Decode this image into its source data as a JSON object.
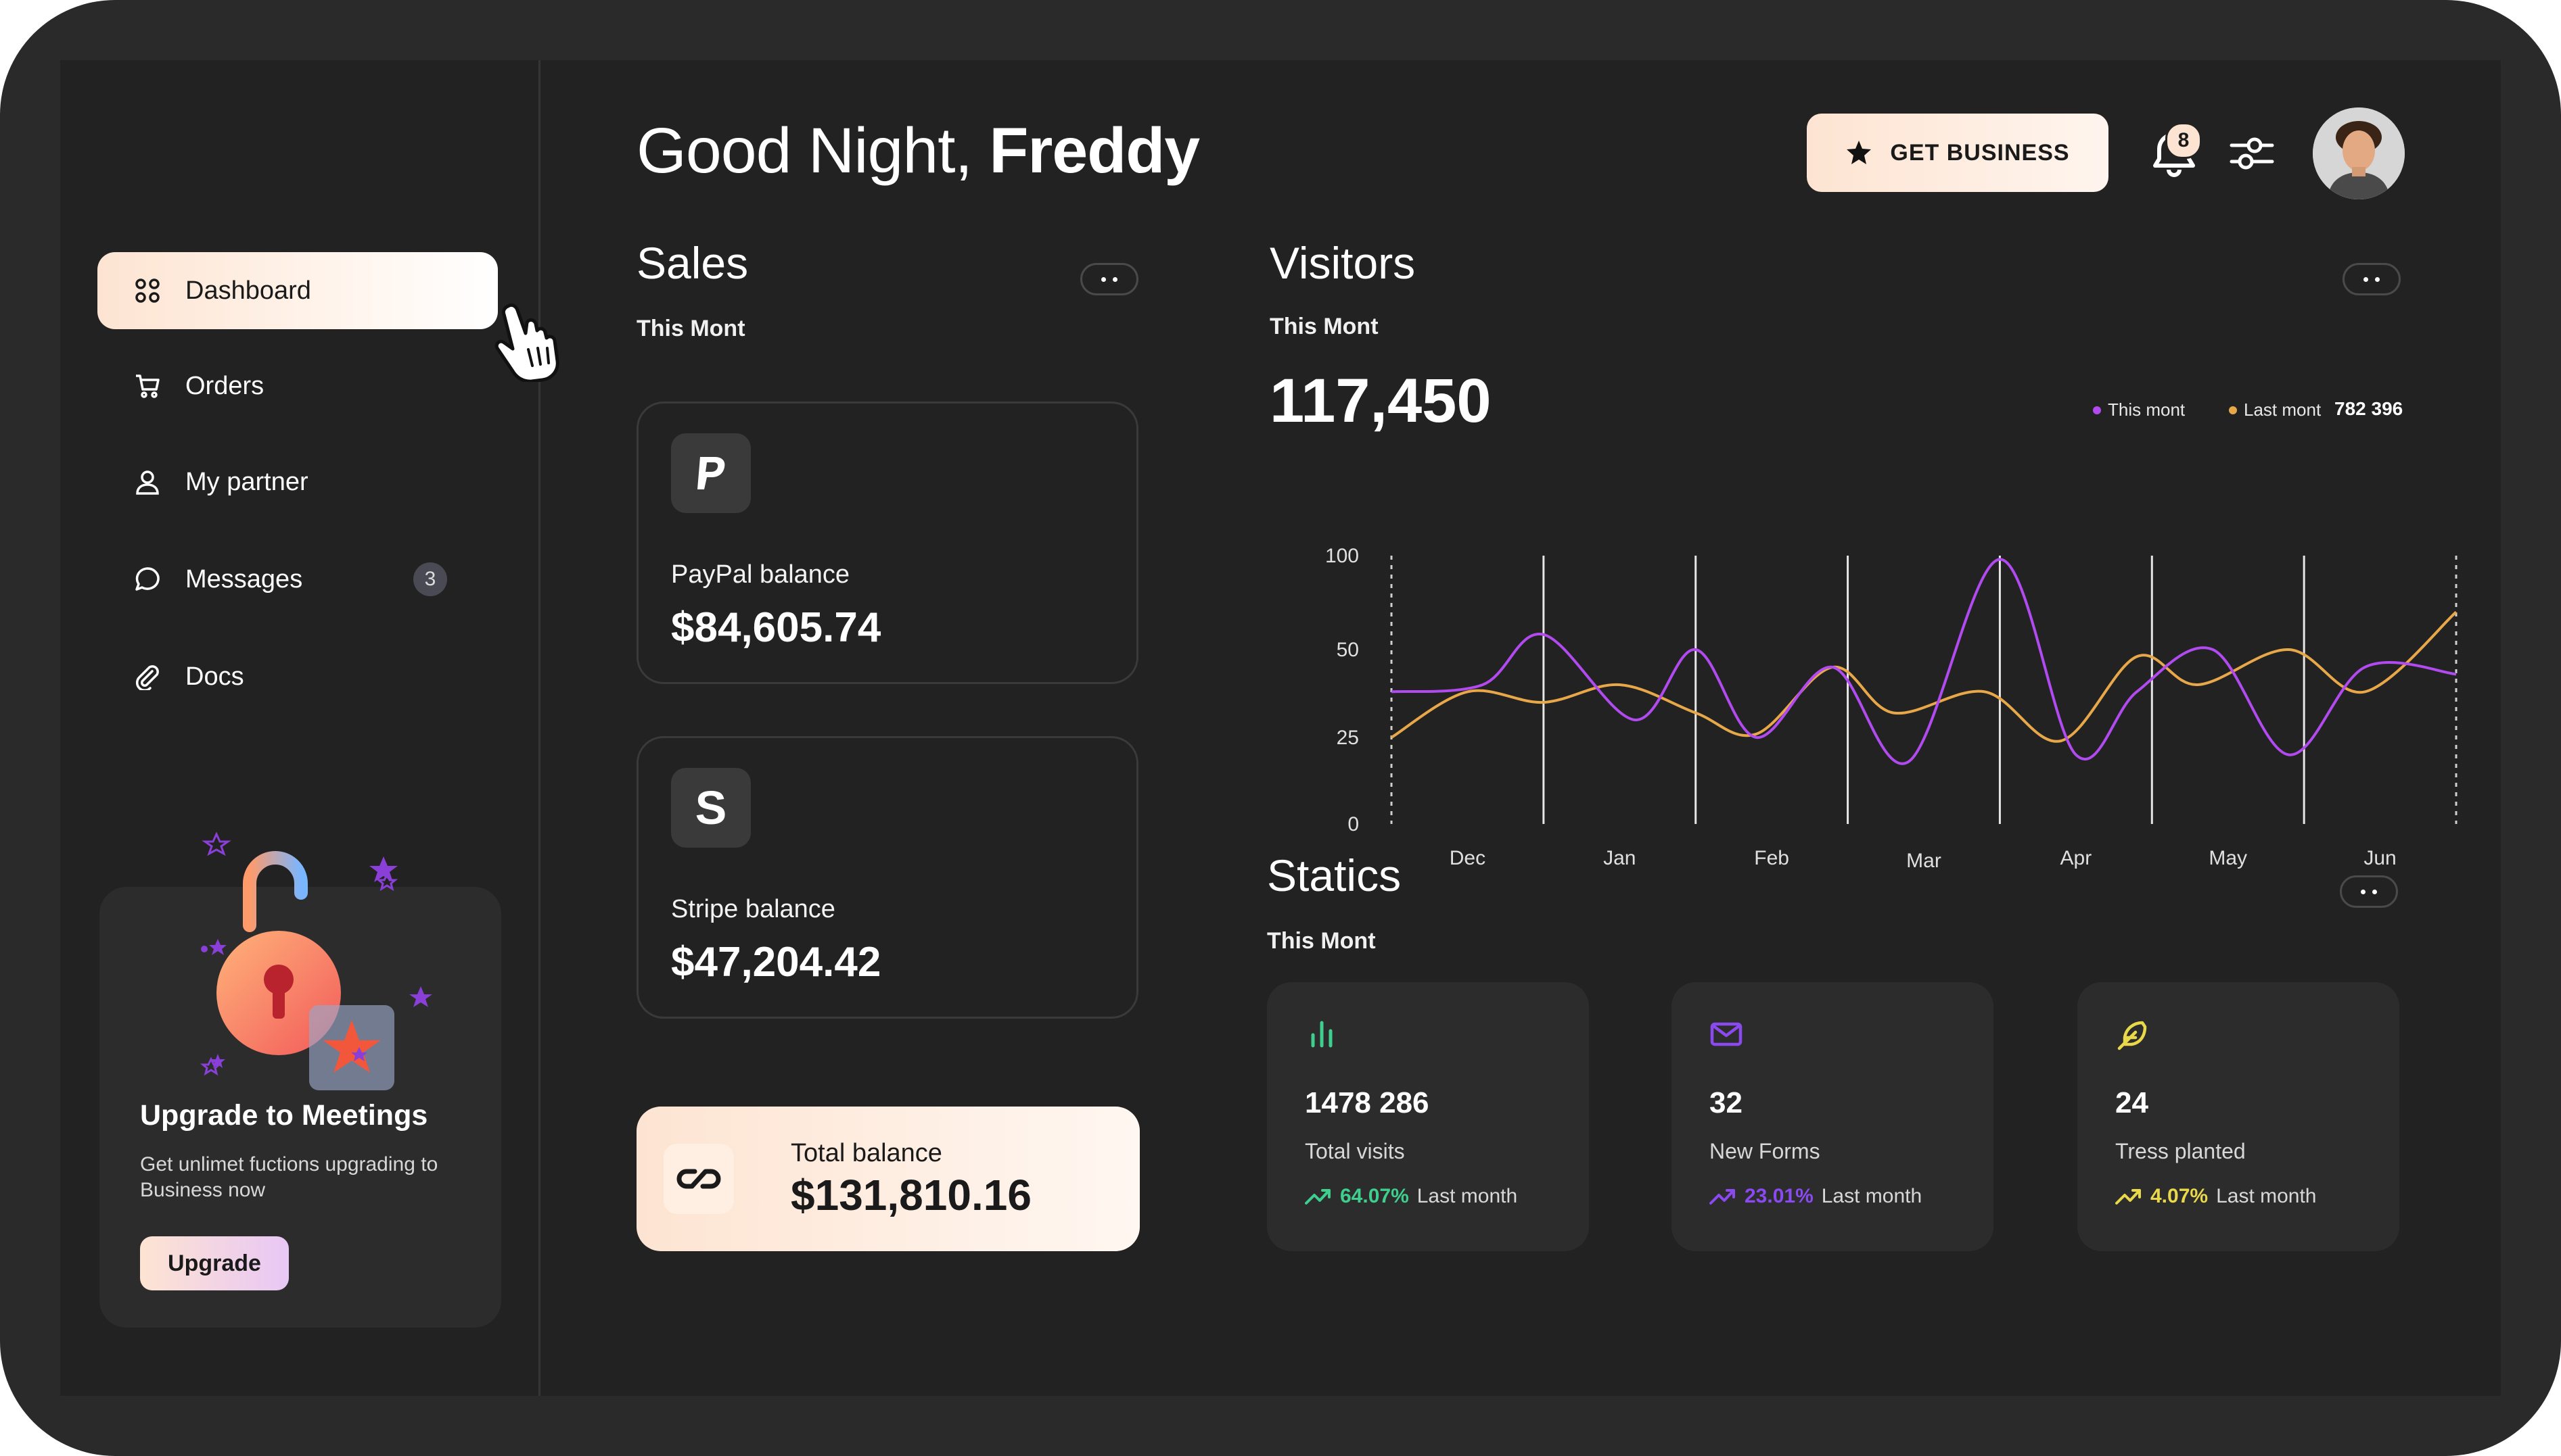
{
  "header": {
    "greeting_prefix": "Good Night, ",
    "user_name": "Freddy",
    "get_business_label": "GET BUSINESS",
    "notifications_count": "8"
  },
  "sidebar": {
    "items": [
      {
        "label": "Dashboard",
        "icon": "grid-icon",
        "active": true
      },
      {
        "label": "Orders",
        "icon": "cart-icon"
      },
      {
        "label": "My partner",
        "icon": "user-icon"
      },
      {
        "label": "Messages",
        "icon": "chat-icon",
        "badge": "3"
      },
      {
        "label": "Docs",
        "icon": "paperclip-icon"
      }
    ],
    "promo": {
      "title": "Upgrade to Meetings",
      "description": "Get unlimet fuctions upgrading to Business now",
      "button_label": "Upgrade"
    }
  },
  "sales": {
    "title": "Sales",
    "subtitle": "This Mont",
    "cards": [
      {
        "name": "paypal",
        "logo": "P",
        "label": "PayPal balance",
        "amount": "$84,605.74"
      },
      {
        "name": "stripe",
        "logo": "S",
        "label": "Stripe balance",
        "amount": "$47,204.42"
      }
    ],
    "total_label": "Total balance",
    "total_amount": "$131,810.16"
  },
  "visitors": {
    "title": "Visitors",
    "subtitle": "This Mont",
    "total": "117,450",
    "legend": [
      {
        "label": "This mont",
        "color": "#b14bf0"
      },
      {
        "label": "Last mont",
        "color": "#e8a84a"
      }
    ],
    "legend_total": "782 396"
  },
  "chart_data": {
    "type": "line",
    "title": "",
    "xlabel": "",
    "ylabel": "",
    "x": [
      "Dec",
      "Jan",
      "Feb",
      "Mar",
      "Apr",
      "May",
      "Jun"
    ],
    "y_ticks": [
      "100",
      "50",
      "25",
      "0"
    ],
    "ylim": [
      0,
      100
    ],
    "grid": "vertical lines at month boundaries",
    "legend_position": "top-right",
    "series": [
      {
        "name": "This mont",
        "color": "#b14bf0",
        "points": [
          [
            0,
            38
          ],
          [
            0.6,
            40
          ],
          [
            1,
            58
          ],
          [
            1.6,
            30
          ],
          [
            2,
            50
          ],
          [
            2.4,
            25
          ],
          [
            2.9,
            45
          ],
          [
            3.4,
            18
          ],
          [
            4,
            98
          ],
          [
            4.5,
            20
          ],
          [
            4.9,
            38
          ],
          [
            5.4,
            50
          ],
          [
            5.9,
            20
          ],
          [
            6.4,
            45
          ],
          [
            7,
            43
          ]
        ]
      },
      {
        "name": "Last mont",
        "color": "#e8a84a",
        "points": [
          [
            0,
            25
          ],
          [
            0.5,
            38
          ],
          [
            1,
            35
          ],
          [
            1.5,
            40
          ],
          [
            2,
            32
          ],
          [
            2.4,
            26
          ],
          [
            2.9,
            45
          ],
          [
            3.3,
            32
          ],
          [
            3.9,
            38
          ],
          [
            4.4,
            24
          ],
          [
            4.9,
            48
          ],
          [
            5.3,
            40
          ],
          [
            5.9,
            50
          ],
          [
            6.4,
            38
          ],
          [
            7,
            70
          ]
        ]
      }
    ]
  },
  "statics": {
    "title": "Statics",
    "subtitle": "This Mont",
    "cards": [
      {
        "name": "visits",
        "icon": "bar-chart-icon",
        "value": "1478 286",
        "label": "Total visits",
        "pct": "64.07%",
        "pct_color": "#3ecf8e",
        "period": "Last month"
      },
      {
        "name": "forms",
        "icon": "mail-icon",
        "value": "32",
        "label": "New Forms",
        "pct": "23.01%",
        "pct_color": "#8a4af0",
        "period": "Last month"
      },
      {
        "name": "trees",
        "icon": "feather-icon",
        "value": "24",
        "label": "Tress planted",
        "pct": "4.07%",
        "pct_color": "#e8d84a",
        "period": "Last month"
      }
    ]
  }
}
